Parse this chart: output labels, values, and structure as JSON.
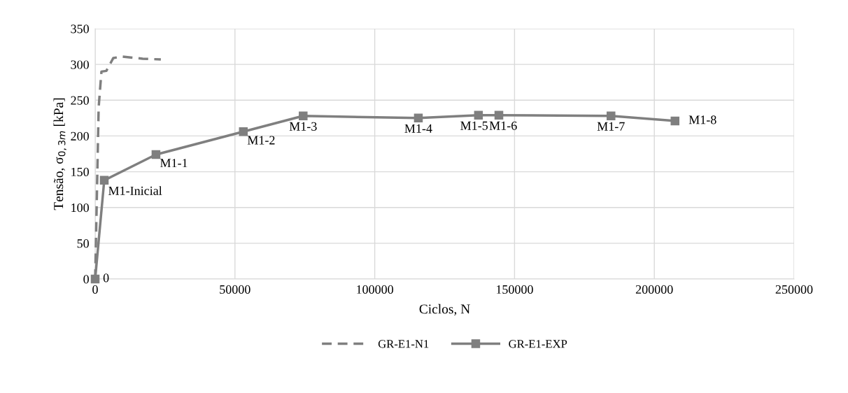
{
  "chart_data": {
    "type": "line",
    "xlabel": "Ciclos, N",
    "ylabel": "Tensão, σ$_{0,3m}$ [kPa]",
    "xlim": [
      0,
      250000
    ],
    "xticks": [
      0,
      50000,
      100000,
      150000,
      200000,
      250000
    ],
    "ylim": [
      0,
      350
    ],
    "yticks": [
      0,
      50,
      100,
      150,
      200,
      250,
      300,
      350
    ],
    "grid": true,
    "legend": "bottom",
    "series": [
      {
        "name": "GR-E1-N1",
        "color": "#7f7f7f",
        "line_style": "dashed",
        "marker": "none",
        "x": [
          0,
          500,
          1250,
          2250,
          4000,
          6500,
          9500,
          17000,
          23500
        ],
        "values": [
          0,
          94,
          240,
          290,
          291,
          309,
          311,
          308,
          307
        ]
      },
      {
        "name": "GR-E1-EXP",
        "color": "#7f7f7f",
        "line_style": "solid",
        "marker": "square",
        "x": [
          0,
          3250,
          21750,
          53000,
          74400,
          115600,
          137100,
          144400,
          184500,
          207400
        ],
        "values": [
          0,
          138,
          174,
          206,
          228,
          225,
          229,
          229,
          228,
          221
        ]
      }
    ],
    "annotations": [
      {
        "text": "0",
        "x": 0,
        "y": 0
      },
      {
        "text": "M1-Inicial",
        "x": 3250,
        "y": 138
      },
      {
        "text": "M1-1",
        "x": 21750,
        "y": 174
      },
      {
        "text": "M1-2",
        "x": 53000,
        "y": 206
      },
      {
        "text": "M1-3",
        "x": 74400,
        "y": 228
      },
      {
        "text": "M1-4",
        "x": 115600,
        "y": 225
      },
      {
        "text": "M1-5",
        "x": 137100,
        "y": 229
      },
      {
        "text": "M1-6",
        "x": 144400,
        "y": 229
      },
      {
        "text": "M1-7",
        "x": 184500,
        "y": 228
      },
      {
        "text": "M1-8",
        "x": 207400,
        "y": 221
      }
    ]
  }
}
